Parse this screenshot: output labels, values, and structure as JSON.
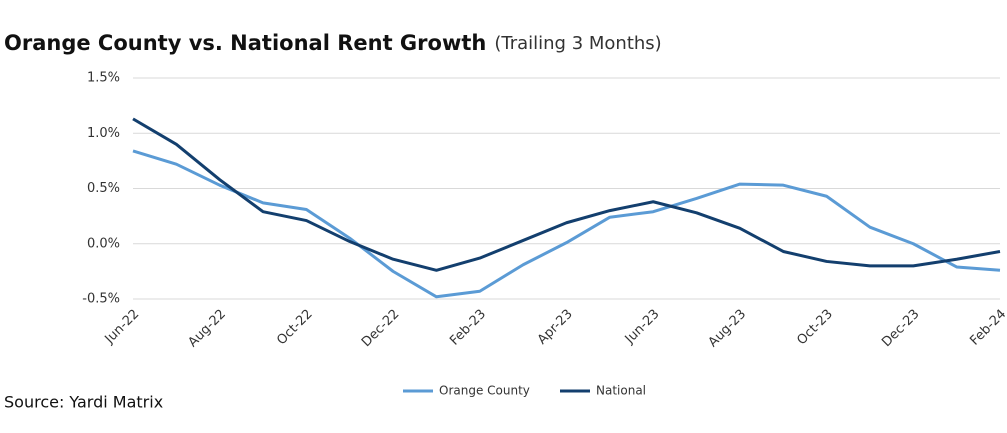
{
  "chart_data": {
    "type": "line",
    "title": "Orange County vs. National Rent Growth",
    "subtitle": "(Trailing 3 Months)",
    "source": "Source: Yardi Matrix",
    "categories": [
      "Jun-22",
      null,
      "Aug-22",
      null,
      "Oct-22",
      null,
      "Dec-22",
      null,
      "Feb-23",
      null,
      "Apr-23",
      null,
      "Jun-23",
      null,
      "Aug-23",
      null,
      "Oct-23",
      null,
      "Dec-23",
      null,
      "Feb-24"
    ],
    "series": [
      {
        "name": "Orange County",
        "color": "#5b9bd5",
        "values": [
          0.84,
          0.72,
          0.53,
          0.37,
          0.31,
          0.05,
          -0.25,
          -0.48,
          -0.43,
          -0.19,
          0.01,
          0.24,
          0.29,
          0.41,
          0.54,
          0.53,
          0.43,
          0.15,
          0.0,
          -0.21,
          -0.24
        ]
      },
      {
        "name": "National",
        "color": "#133f6e",
        "values": [
          1.13,
          0.9,
          0.58,
          0.29,
          0.21,
          0.02,
          -0.14,
          -0.24,
          -0.13,
          0.03,
          0.19,
          0.3,
          0.38,
          0.28,
          0.14,
          -0.07,
          -0.16,
          -0.2,
          -0.2,
          -0.14,
          -0.07
        ]
      }
    ],
    "ylim": [
      -0.5,
      1.5
    ],
    "yticks": [
      {
        "value": -0.5,
        "label": "-0.5%"
      },
      {
        "value": 0,
        "label": "0.0%"
      },
      {
        "value": 0.5,
        "label": "0.5%"
      },
      {
        "value": 1,
        "label": "1.0%"
      },
      {
        "value": 1.5,
        "label": "1.5%"
      }
    ],
    "grid": true,
    "legend": "bottom"
  }
}
